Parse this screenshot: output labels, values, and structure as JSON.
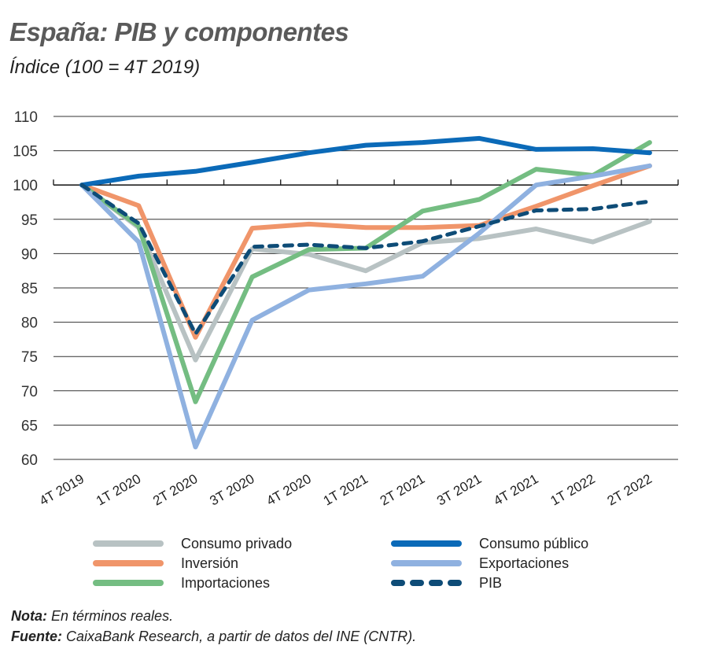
{
  "chart_data": {
    "type": "line",
    "title": "España: PIB y componentes",
    "subtitle": "Índice (100 = 4T 2019)",
    "xlabel": "",
    "ylabel": "",
    "ylim": [
      60,
      110
    ],
    "yticks": [
      "110",
      "105",
      "100",
      "95",
      "90",
      "85",
      "80",
      "75",
      "70",
      "65",
      "60"
    ],
    "grid": true,
    "legend_position": "bottom",
    "categories": [
      "4T 2019",
      "1T 2020",
      "2T 2020",
      "3T 2020",
      "4T 2020",
      "1T 2021",
      "2T 2021",
      "3T 2021",
      "4T 2021",
      "1T 2022",
      "2T 2022"
    ],
    "series": [
      {
        "name": "Consumo privado",
        "color": "#b8c2c3",
        "dashed": false,
        "values": [
          100,
          93.8,
          74.5,
          90.7,
          89.9,
          87.5,
          91.6,
          92.2,
          93.6,
          91.7,
          94.7
        ]
      },
      {
        "name": "Inversión",
        "color": "#f0956a",
        "dashed": false,
        "values": [
          100,
          97.0,
          77.8,
          93.7,
          94.3,
          93.8,
          93.8,
          94.1,
          96.9,
          99.9,
          102.8
        ]
      },
      {
        "name": "Importaciones",
        "color": "#74bd82",
        "dashed": false,
        "values": [
          100,
          94.0,
          68.4,
          86.6,
          90.6,
          90.8,
          96.2,
          97.9,
          102.3,
          101.4,
          106.2
        ]
      },
      {
        "name": "Exportaciones",
        "color": "#8fb1e0",
        "dashed": false,
        "values": [
          100,
          91.7,
          61.8,
          80.3,
          84.7,
          85.6,
          86.7,
          93.0,
          100.0,
          101.3,
          102.8
        ]
      },
      {
        "name": "Consumo público",
        "color": "#0b6ab8",
        "dashed": false,
        "values": [
          100,
          101.3,
          102.0,
          103.3,
          104.7,
          105.8,
          106.2,
          106.8,
          105.2,
          105.3,
          104.7
        ]
      },
      {
        "name": "PIB",
        "color": "#0e4c77",
        "dashed": true,
        "values": [
          100,
          94.4,
          78.3,
          91.0,
          91.3,
          90.8,
          91.8,
          94.0,
          96.3,
          96.5,
          97.6
        ]
      }
    ]
  },
  "legend": [
    {
      "label": "Consumo privado",
      "color": "#b8c2c3",
      "dashed": false
    },
    {
      "label": "Consumo público",
      "color": "#0b6ab8",
      "dashed": false
    },
    {
      "label": "Inversión",
      "color": "#f0956a",
      "dashed": false
    },
    {
      "label": "Exportaciones",
      "color": "#8fb1e0",
      "dashed": false
    },
    {
      "label": "Importaciones",
      "color": "#74bd82",
      "dashed": false
    },
    {
      "label": "PIB",
      "color": "#0e4c77",
      "dashed": true
    }
  ],
  "notes": {
    "nota_label": "Nota:",
    "nota_text": " En términos reales.",
    "fuente_label": "Fuente:",
    "fuente_text": " CaixaBank Research, a partir de datos del INE (CNTR)."
  }
}
